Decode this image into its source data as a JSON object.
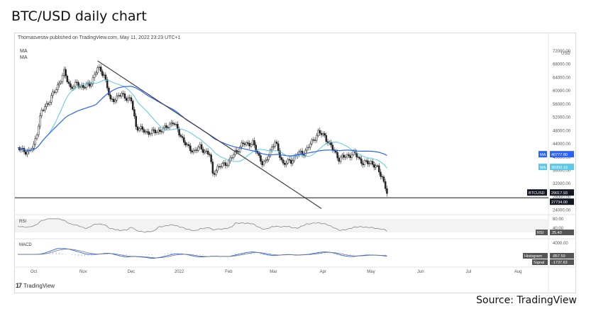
{
  "page_title": "BTC/USD daily chart",
  "publisher_text": "Thomasvestw published on TradingView.com, May 11, 2022 23:23 UTC+1",
  "source_text": "Source: TradingView",
  "logo_text": "TradingView",
  "colors": {
    "candle": "#222222",
    "ma_fast": "#5bc8e6",
    "ma_slow": "#2962ff",
    "trendline": "#444444",
    "support": "#111111",
    "rsi": "#888888",
    "macd": "#2962ff",
    "signal": "#7a7a7a"
  },
  "chart_data": {
    "type": "candlestick",
    "title": "BTC/USD daily chart",
    "currency": "USD",
    "x_tick_labels": [
      "Oct",
      "Nov",
      "Dec",
      "2022",
      "Feb",
      "Mar",
      "Apr",
      "May",
      "Jun",
      "Jul",
      "Aug"
    ],
    "y_tick_labels": [
      "72000.00",
      "68000.00",
      "64000.00",
      "60000.00",
      "56000.00",
      "52000.00",
      "48000.00",
      "44000.00",
      "40000.00",
      "36000.00",
      "32000.00",
      "28000.00",
      "24000.00"
    ],
    "ylim": [
      23500,
      73500
    ],
    "price_path": [
      {
        "x": "Sep 21",
        "y": 42500
      },
      {
        "x": "Sep 28",
        "y": 41500
      },
      {
        "x": "Oct 1",
        "y": 43500
      },
      {
        "x": "Oct 6",
        "y": 53800
      },
      {
        "x": "Oct 11",
        "y": 57200
      },
      {
        "x": "Oct 16",
        "y": 61500
      },
      {
        "x": "Oct 20",
        "y": 65500
      },
      {
        "x": "Oct 24",
        "y": 61000
      },
      {
        "x": "Oct 28",
        "y": 62000
      },
      {
        "x": "Nov 1",
        "y": 61200
      },
      {
        "x": "Nov 5",
        "y": 61800
      },
      {
        "x": "Nov 10",
        "y": 66800
      },
      {
        "x": "Nov 14",
        "y": 65000
      },
      {
        "x": "Nov 18",
        "y": 56900
      },
      {
        "x": "Nov 25",
        "y": 58900
      },
      {
        "x": "Dec 1",
        "y": 57000
      },
      {
        "x": "Dec 4",
        "y": 49300
      },
      {
        "x": "Dec 10",
        "y": 47500
      },
      {
        "x": "Dec 16",
        "y": 47600
      },
      {
        "x": "Dec 22",
        "y": 48600
      },
      {
        "x": "Dec 27",
        "y": 50700
      },
      {
        "x": "Jan 1",
        "y": 47300
      },
      {
        "x": "Jan 6",
        "y": 43100
      },
      {
        "x": "Jan 10",
        "y": 41800
      },
      {
        "x": "Jan 14",
        "y": 43000
      },
      {
        "x": "Jan 20",
        "y": 40700
      },
      {
        "x": "Jan 22",
        "y": 35000
      },
      {
        "x": "Jan 24",
        "y": 36300
      },
      {
        "x": "Jan 28",
        "y": 37700
      },
      {
        "x": "Feb 1",
        "y": 38500
      },
      {
        "x": "Feb 5",
        "y": 41500
      },
      {
        "x": "Feb 10",
        "y": 44000
      },
      {
        "x": "Feb 16",
        "y": 44200
      },
      {
        "x": "Feb 22",
        "y": 38200
      },
      {
        "x": "Feb 24",
        "y": 38300
      },
      {
        "x": "Feb 28",
        "y": 43200
      },
      {
        "x": "Mar 2",
        "y": 44400
      },
      {
        "x": "Mar 7",
        "y": 38000
      },
      {
        "x": "Mar 12",
        "y": 38800
      },
      {
        "x": "Mar 16",
        "y": 41000
      },
      {
        "x": "Mar 20",
        "y": 41300
      },
      {
        "x": "Mar 25",
        "y": 44500
      },
      {
        "x": "Mar 29",
        "y": 47500
      },
      {
        "x": "Apr 2",
        "y": 46300
      },
      {
        "x": "Apr 6",
        "y": 43200
      },
      {
        "x": "Apr 11",
        "y": 39500
      },
      {
        "x": "Apr 16",
        "y": 40400
      },
      {
        "x": "Apr 21",
        "y": 41100
      },
      {
        "x": "Apr 26",
        "y": 38100
      },
      {
        "x": "May 1",
        "y": 38500
      },
      {
        "x": "May 5",
        "y": 36500
      },
      {
        "x": "May 8",
        "y": 34000
      },
      {
        "x": "May 10",
        "y": 31000
      },
      {
        "x": "May 11",
        "y": 29017.93
      }
    ],
    "annotations": [
      {
        "label": "MA",
        "value": "40777.80",
        "color": "#2962ff"
      },
      {
        "label": "MA",
        "value": "36950.19",
        "color": "#5bc8e6"
      },
      {
        "label": "BTCUSD",
        "value": "29017.93",
        "color": "#131722"
      },
      {
        "label": "",
        "value": "27734.00",
        "color": "#131722"
      }
    ],
    "support_level": 27734.0,
    "rsi": {
      "label": "RSI",
      "y_tick_labels": [
        "80.00",
        "40.00"
      ],
      "value_label": "RSI",
      "value": "25.40"
    },
    "macd": {
      "label": "MACD",
      "y_tick_labels": [
        "4000.00"
      ],
      "histogram_label": "Histogram",
      "histogram_value": "-857.59",
      "signal_label": "Signal",
      "signal_value": "-1737.63"
    },
    "legend_labels": [
      "MA",
      "MA"
    ]
  }
}
